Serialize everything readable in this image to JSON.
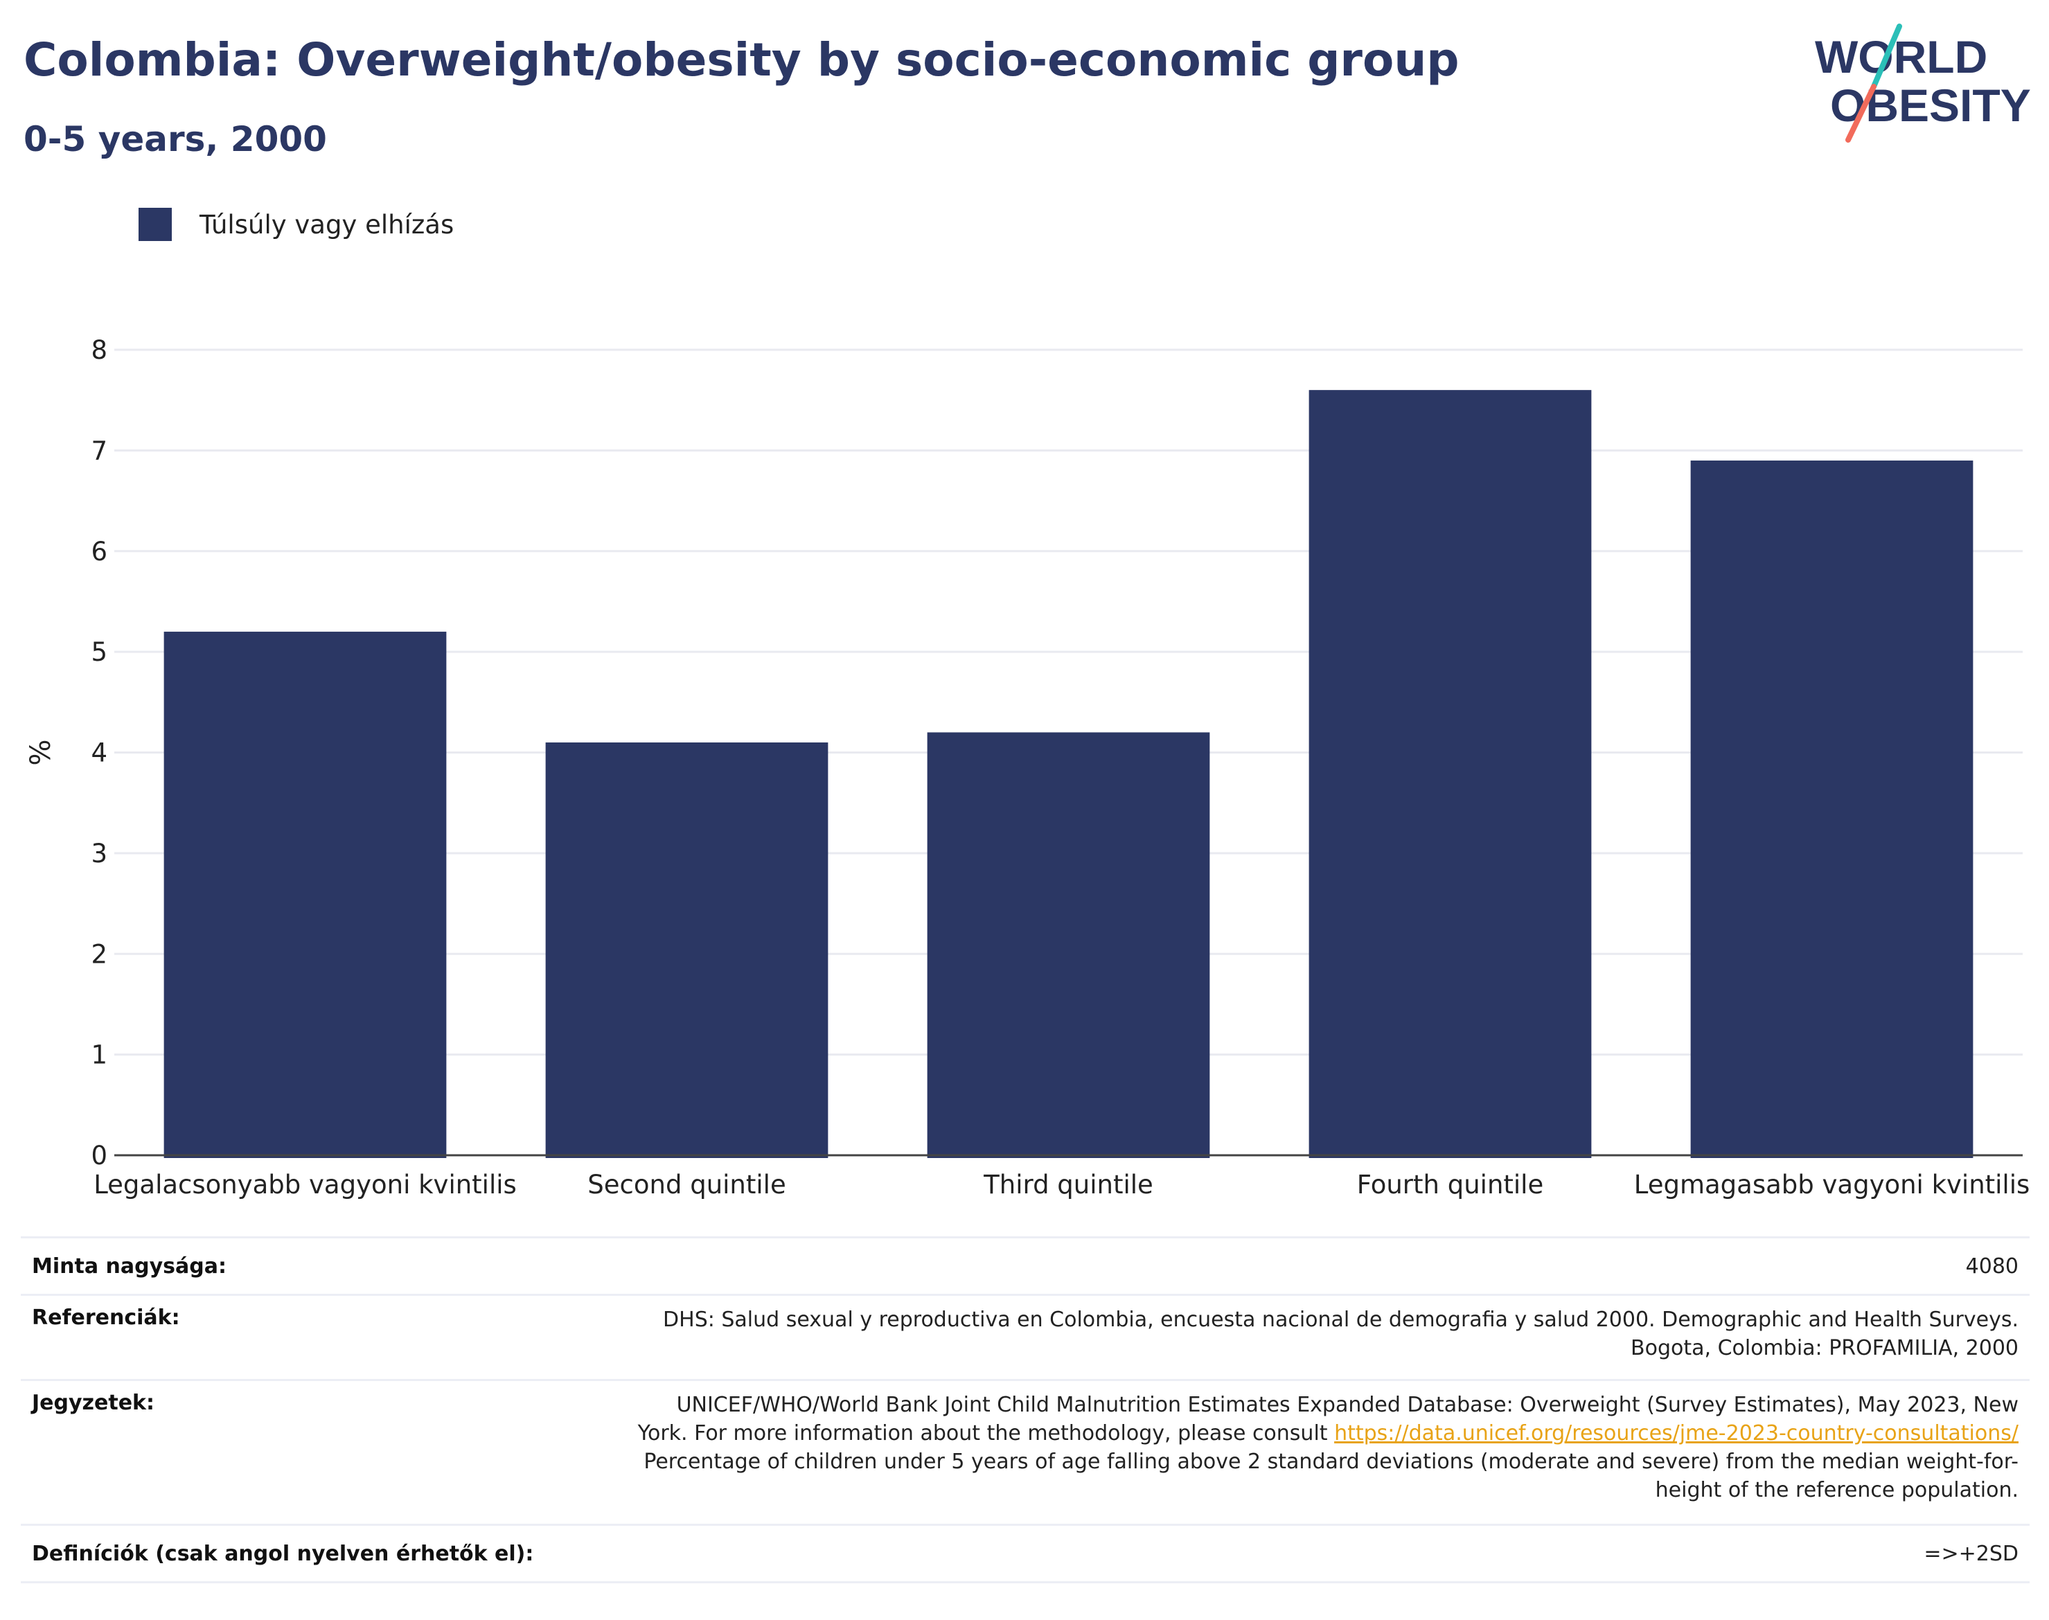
{
  "header": {
    "title": "Colombia: Overweight/obesity by socio-economic group",
    "subtitle": "0-5 years, 2000"
  },
  "logo": {
    "line1": "WORLD",
    "line2": "OBESITY"
  },
  "colors": {
    "bar": "#2b3764",
    "title": "#2b3764",
    "grid": "#e9eaf0",
    "link": "#e8a317",
    "logo_slash_top": "#2bbfb8",
    "logo_slash_bottom": "#f26b5b"
  },
  "chart_data": {
    "type": "bar",
    "categories": [
      "Legalacsonyabb vagyoni kvintilis",
      "Second quintile",
      "Third quintile",
      "Fourth quintile",
      "Legmagasabb vagyoni kvintilis"
    ],
    "series": [
      {
        "name": "Túlsúly vagy elhízás",
        "values": [
          5.2,
          4.1,
          4.2,
          7.6,
          6.9
        ]
      }
    ],
    "ylabel": "%",
    "ylim": [
      0,
      8
    ],
    "yticks": [
      0,
      1,
      2,
      3,
      4,
      5,
      6,
      7,
      8
    ],
    "grid": true,
    "legend": "top-left"
  },
  "info": {
    "sample_size_label": "Minta nagysága:",
    "sample_size_value": "4080",
    "references_label": "Referenciák:",
    "references_lines": [
      "DHS: Salud sexual y reproductiva en Colombia, encuesta nacional de demografia y salud 2000. Demographic and Health Surveys.",
      "Bogota, Colombia: PROFAMILIA, 2000"
    ],
    "notes_label": "Jegyzetek:",
    "notes_line1": "UNICEF/WHO/World Bank Joint Child Malnutrition Estimates Expanded Database: Overweight (Survey Estimates), May 2023, New",
    "notes_line2_prefix": "York. For more information about the methodology, please consult ",
    "notes_link": "https://data.unicef.org/resources/jme-2023-country-consultations/",
    "notes_line3": "Percentage of children under 5 years of age falling above 2 standard deviations (moderate and severe) from the median weight-for-",
    "notes_line4": "height of the reference population.",
    "definitions_label": "Definíciók (csak angol nyelven érhetők el):",
    "definitions_value": "=>+2SD"
  }
}
